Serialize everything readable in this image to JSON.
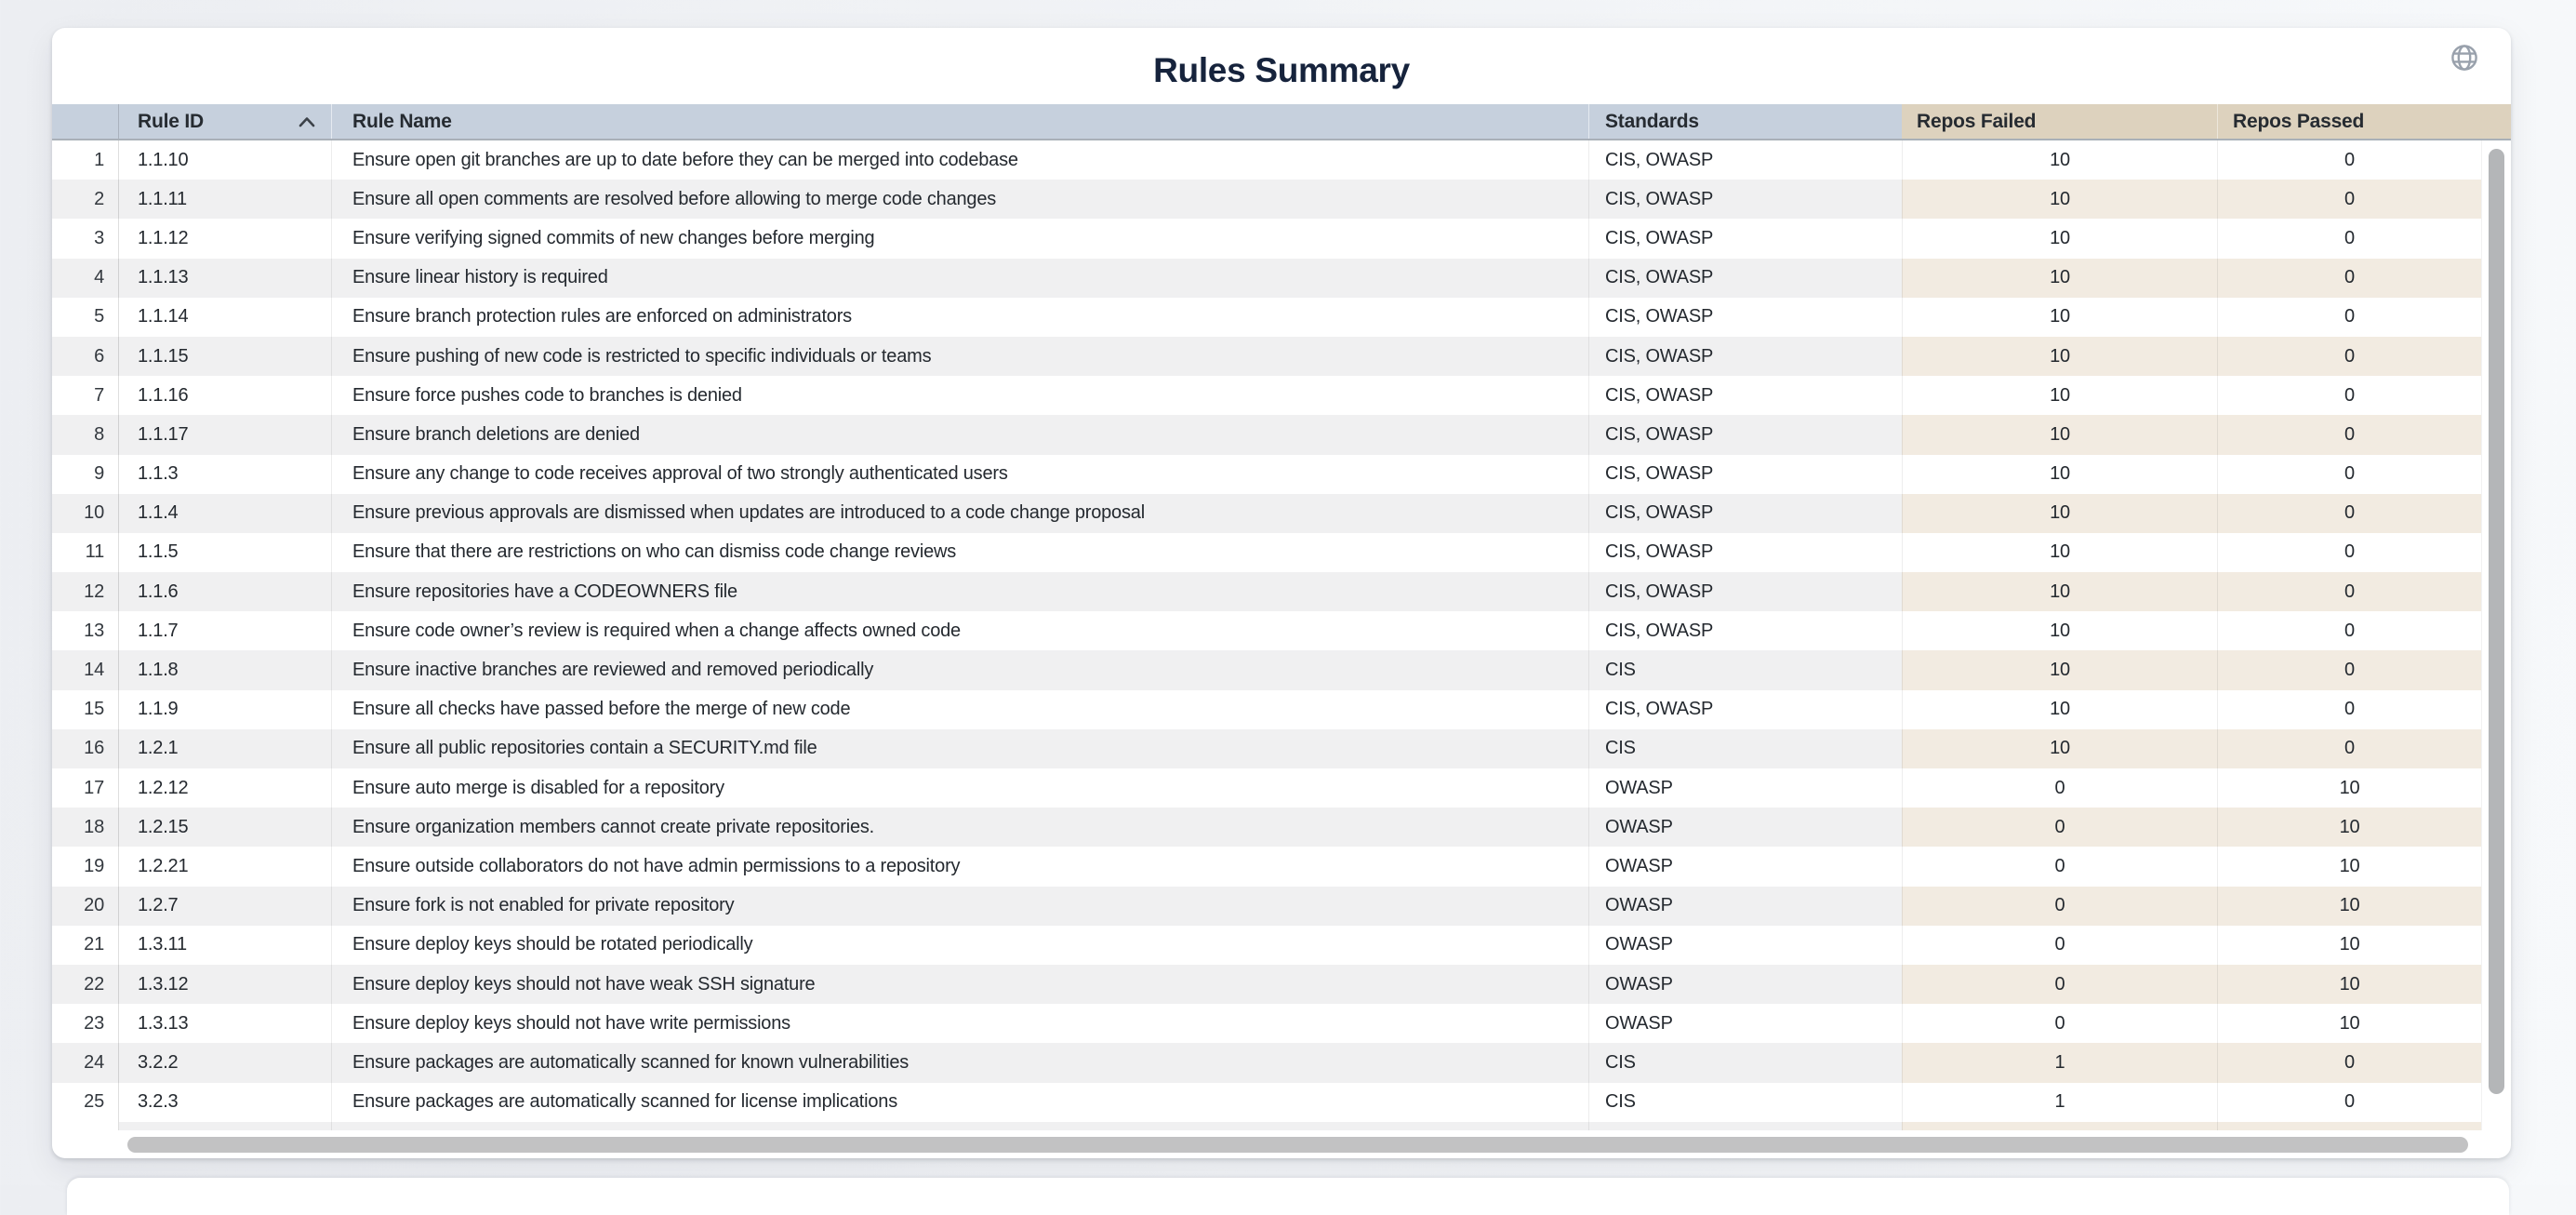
{
  "page": {
    "title": "Rules Summary"
  },
  "icons": {
    "top_right": "globe-icon",
    "rule_id_sort": "chevron-up-icon"
  },
  "colors": {
    "title_text": "#16233c",
    "header_blue": "#c6d0dd",
    "header_tan": "#ddd2be",
    "stripe_gray": "#f0f0f1",
    "stripe_beige": "#f2ebe1"
  },
  "table": {
    "columns": [
      {
        "key": "num",
        "label": ""
      },
      {
        "key": "rule_id",
        "label": "Rule ID",
        "sort": "asc"
      },
      {
        "key": "rule_name",
        "label": "Rule Name"
      },
      {
        "key": "standards",
        "label": "Standards"
      },
      {
        "key": "repos_failed",
        "label": "Repos Failed"
      },
      {
        "key": "repos_passed",
        "label": "Repos Passed"
      }
    ],
    "rows": [
      {
        "num": 1,
        "rule_id": "1.1.10",
        "rule_name": "Ensure open git branches are up to date before they can be merged into codebase",
        "standards": "CIS, OWASP",
        "repos_failed": 10,
        "repos_passed": 0
      },
      {
        "num": 2,
        "rule_id": "1.1.11",
        "rule_name": "Ensure all open comments are resolved before allowing to merge code changes",
        "standards": "CIS, OWASP",
        "repos_failed": 10,
        "repos_passed": 0
      },
      {
        "num": 3,
        "rule_id": "1.1.12",
        "rule_name": "Ensure verifying signed commits of new changes before merging",
        "standards": "CIS, OWASP",
        "repos_failed": 10,
        "repos_passed": 0
      },
      {
        "num": 4,
        "rule_id": "1.1.13",
        "rule_name": "Ensure linear history is required",
        "standards": "CIS, OWASP",
        "repos_failed": 10,
        "repos_passed": 0
      },
      {
        "num": 5,
        "rule_id": "1.1.14",
        "rule_name": "Ensure branch protection rules are enforced on administrators",
        "standards": "CIS, OWASP",
        "repos_failed": 10,
        "repos_passed": 0
      },
      {
        "num": 6,
        "rule_id": "1.1.15",
        "rule_name": "Ensure pushing of new code is restricted to specific individuals or teams",
        "standards": "CIS, OWASP",
        "repos_failed": 10,
        "repos_passed": 0
      },
      {
        "num": 7,
        "rule_id": "1.1.16",
        "rule_name": "Ensure force pushes code to branches is denied",
        "standards": "CIS, OWASP",
        "repos_failed": 10,
        "repos_passed": 0
      },
      {
        "num": 8,
        "rule_id": "1.1.17",
        "rule_name": "Ensure branch deletions are denied",
        "standards": "CIS, OWASP",
        "repos_failed": 10,
        "repos_passed": 0
      },
      {
        "num": 9,
        "rule_id": "1.1.3",
        "rule_name": "Ensure any change to code receives approval of two strongly authenticated users",
        "standards": "CIS, OWASP",
        "repos_failed": 10,
        "repos_passed": 0
      },
      {
        "num": 10,
        "rule_id": "1.1.4",
        "rule_name": "Ensure previous approvals are dismissed when updates are introduced to a code change proposal",
        "standards": "CIS, OWASP",
        "repos_failed": 10,
        "repos_passed": 0
      },
      {
        "num": 11,
        "rule_id": "1.1.5",
        "rule_name": "Ensure that there are restrictions on who can dismiss code change reviews",
        "standards": "CIS, OWASP",
        "repos_failed": 10,
        "repos_passed": 0
      },
      {
        "num": 12,
        "rule_id": "1.1.6",
        "rule_name": "Ensure repositories have a CODEOWNERS file",
        "standards": "CIS, OWASP",
        "repos_failed": 10,
        "repos_passed": 0
      },
      {
        "num": 13,
        "rule_id": "1.1.7",
        "rule_name": "Ensure code owner’s review is required when a change affects owned code",
        "standards": "CIS, OWASP",
        "repos_failed": 10,
        "repos_passed": 0
      },
      {
        "num": 14,
        "rule_id": "1.1.8",
        "rule_name": "Ensure inactive branches are reviewed and removed periodically",
        "standards": "CIS",
        "repos_failed": 10,
        "repos_passed": 0
      },
      {
        "num": 15,
        "rule_id": "1.1.9",
        "rule_name": "Ensure all checks have passed before the merge of new code",
        "standards": "CIS, OWASP",
        "repos_failed": 10,
        "repos_passed": 0
      },
      {
        "num": 16,
        "rule_id": "1.2.1",
        "rule_name": "Ensure all public repositories contain a SECURITY.md file",
        "standards": "CIS",
        "repos_failed": 10,
        "repos_passed": 0
      },
      {
        "num": 17,
        "rule_id": "1.2.12",
        "rule_name": "Ensure auto merge is disabled for a repository",
        "standards": "OWASP",
        "repos_failed": 0,
        "repos_passed": 10
      },
      {
        "num": 18,
        "rule_id": "1.2.15",
        "rule_name": "Ensure organization members cannot create private repositories.",
        "standards": "OWASP",
        "repos_failed": 0,
        "repos_passed": 10
      },
      {
        "num": 19,
        "rule_id": "1.2.21",
        "rule_name": "Ensure outside collaborators do not have admin permissions to a repository",
        "standards": "OWASP",
        "repos_failed": 0,
        "repos_passed": 10
      },
      {
        "num": 20,
        "rule_id": "1.2.7",
        "rule_name": "Ensure fork is not enabled for private repository",
        "standards": "OWASP",
        "repos_failed": 0,
        "repos_passed": 10
      },
      {
        "num": 21,
        "rule_id": "1.3.11",
        "rule_name": "Ensure deploy keys should be rotated periodically",
        "standards": "OWASP",
        "repos_failed": 0,
        "repos_passed": 10
      },
      {
        "num": 22,
        "rule_id": "1.3.12",
        "rule_name": "Ensure deploy keys should not have weak SSH signature",
        "standards": "OWASP",
        "repos_failed": 0,
        "repos_passed": 10
      },
      {
        "num": 23,
        "rule_id": "1.3.13",
        "rule_name": "Ensure deploy keys should not have write permissions",
        "standards": "OWASP",
        "repos_failed": 0,
        "repos_passed": 10
      },
      {
        "num": 24,
        "rule_id": "3.2.2",
        "rule_name": "Ensure packages are automatically scanned for known vulnerabilities",
        "standards": "CIS",
        "repos_failed": 1,
        "repos_passed": 0
      },
      {
        "num": 25,
        "rule_id": "3.2.3",
        "rule_name": "Ensure packages are automatically scanned for license implications",
        "standards": "CIS",
        "repos_failed": 1,
        "repos_passed": 0
      }
    ]
  }
}
